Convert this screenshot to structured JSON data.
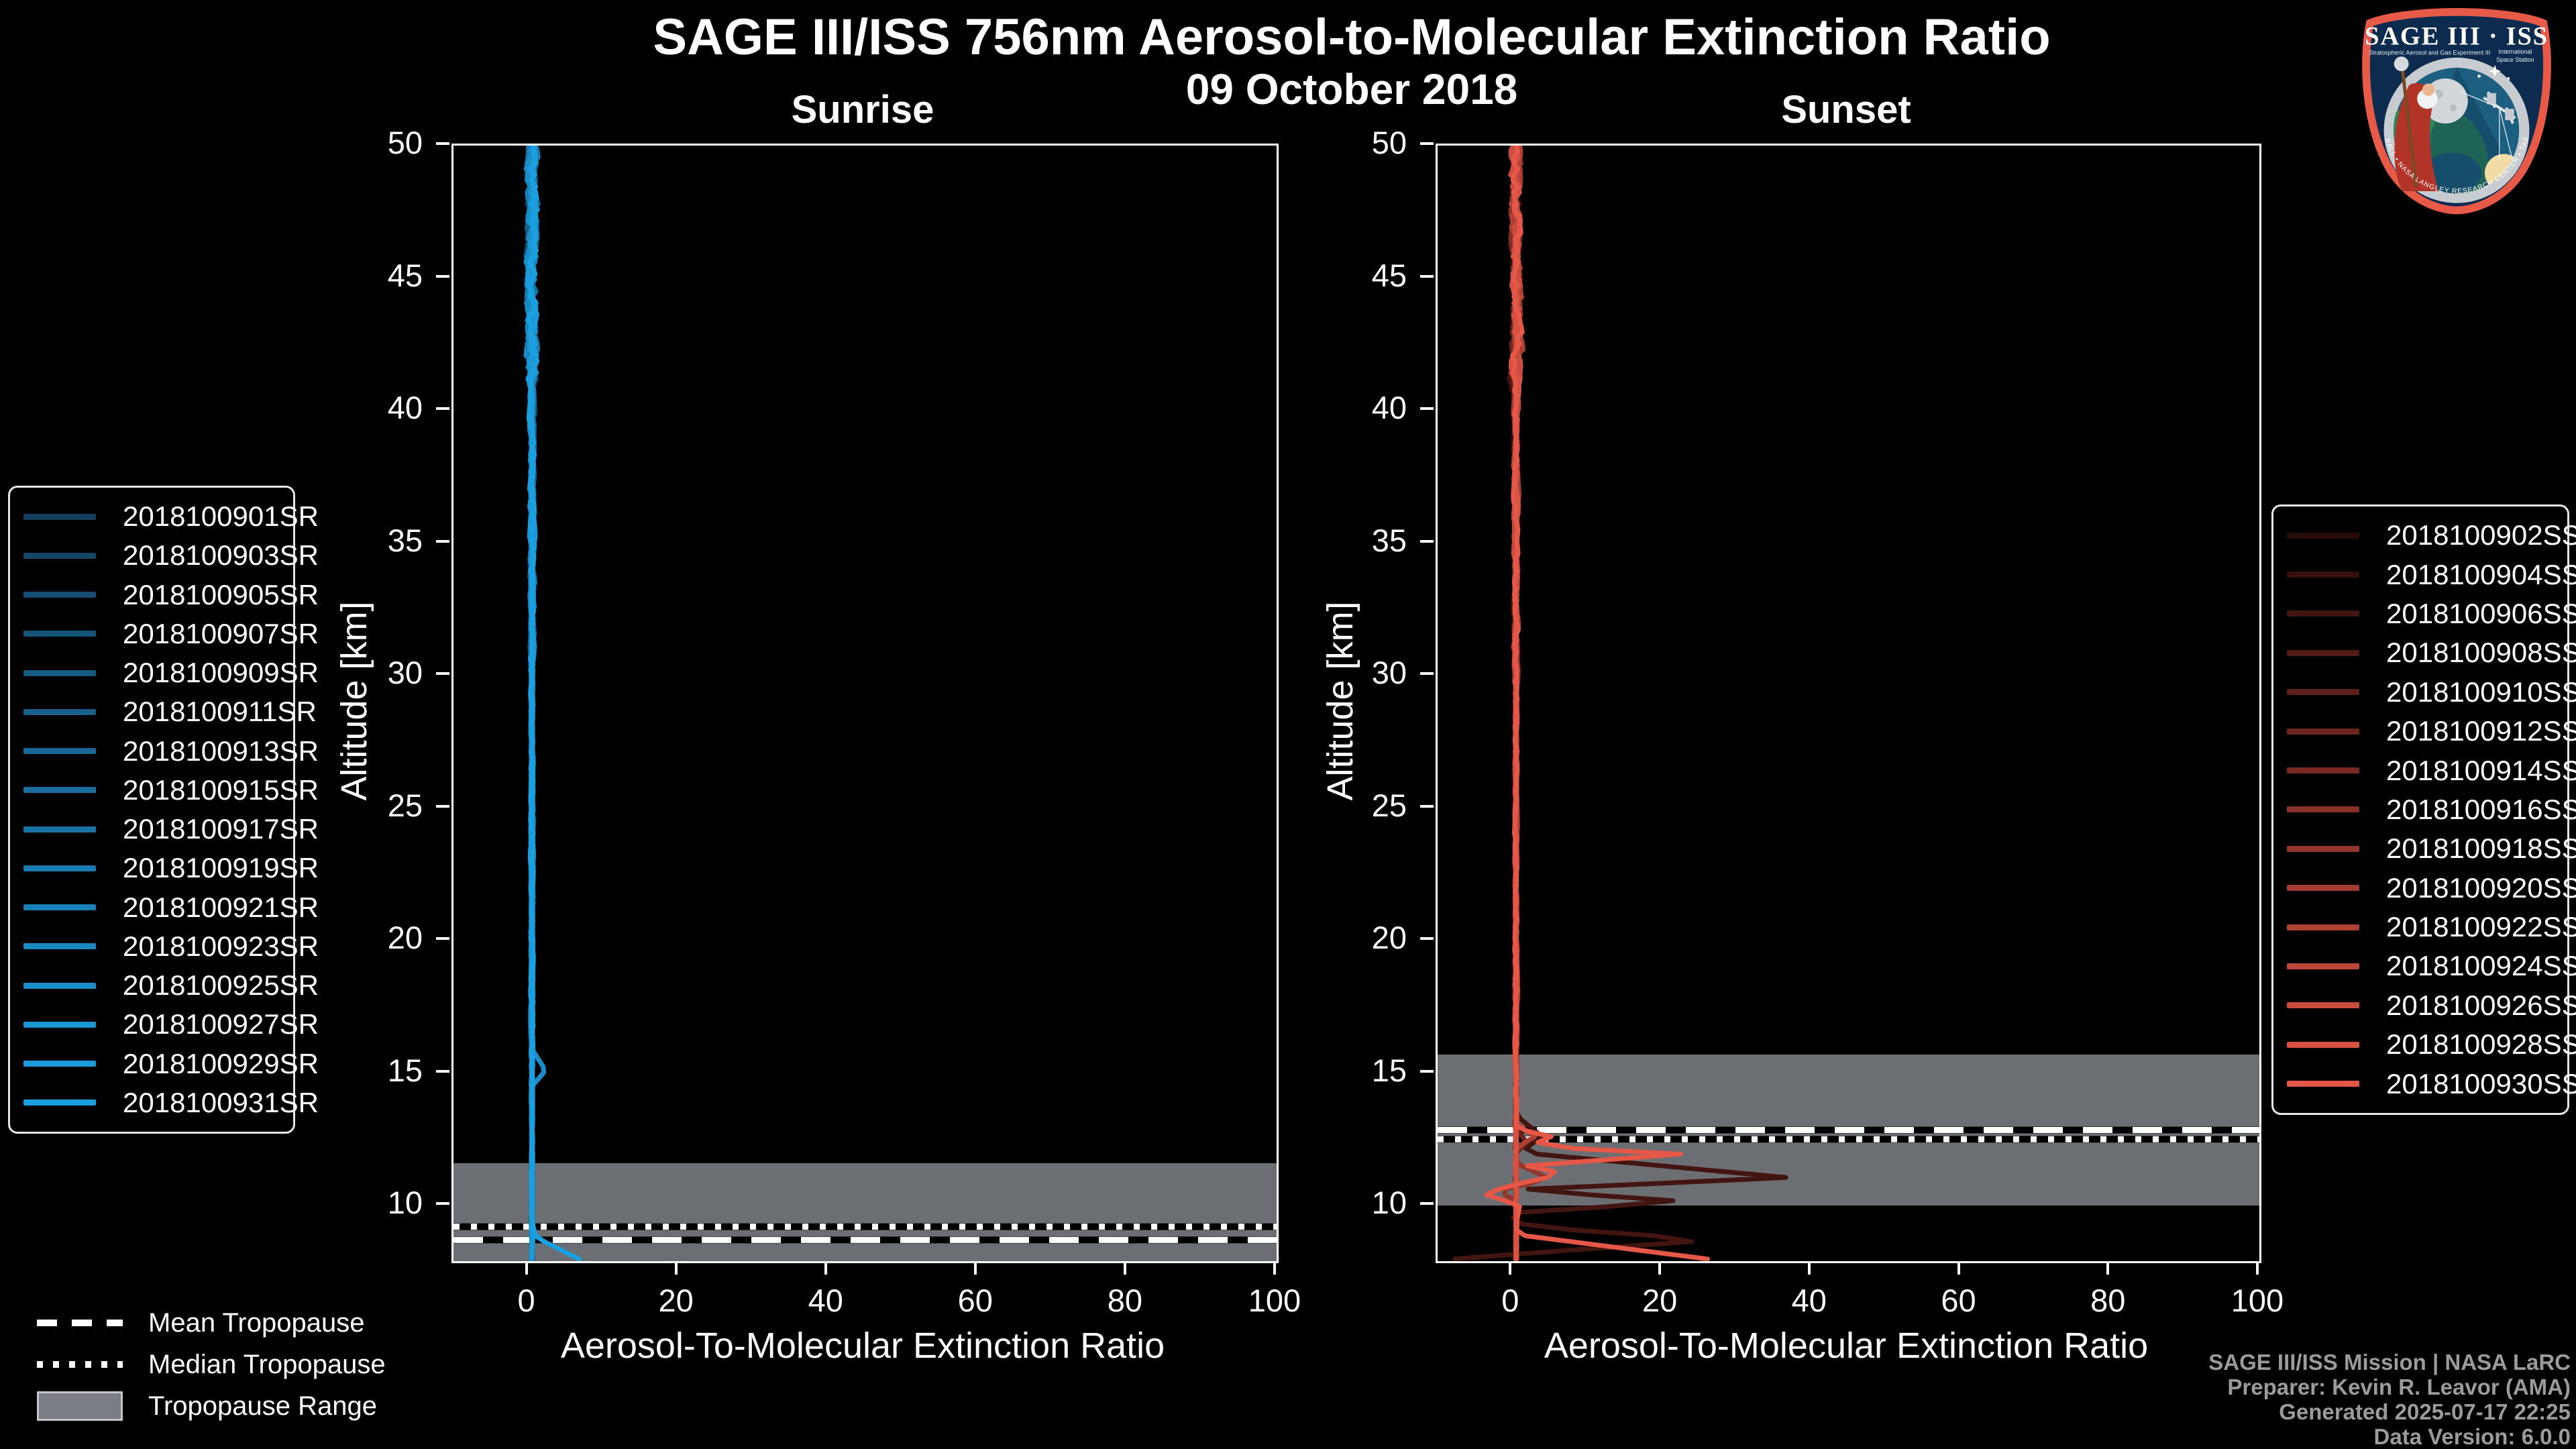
{
  "title": "SAGE III/ISS 756nm Aerosol-to-Molecular Extinction Ratio",
  "subtitle_date": "09 October 2018",
  "colors": {
    "background": "#000000",
    "axis": "#ffffff",
    "tropopause_band": "#6b6f74",
    "tropopause_band_legend": "#7a7e84",
    "credits_text": "#9b9b9b",
    "sunrise_accent": "#1aa0e0",
    "sunset_accent": "#e55746"
  },
  "tropopause_legend": [
    {
      "style": "dashed",
      "label": "Mean Tropopause"
    },
    {
      "style": "dotted",
      "label": "Median Tropopause"
    },
    {
      "style": "band",
      "label": "Tropopause Range"
    }
  ],
  "credits": [
    "SAGE III/ISS Mission | NASA LaRC",
    "Preparer: Kevin R. Leavor (AMA)",
    "Generated 2025-07-17 22:25",
    "Data Version: 6.0.0"
  ],
  "logo": {
    "title": "SAGE III · ISS",
    "program_left": "Stratospheric Aerosol and Gas Experiment III",
    "program_right_line1": "International",
    "program_right_line2": "Space Station",
    "ring_text": "BALL • NASA LANGLEY RESEARCH CENTER • TAS-I • ESA"
  },
  "chart_data": {
    "type": "line",
    "xlabel": "Aerosol-To-Molecular Extinction Ratio",
    "ylabel": "Altitude [km]",
    "xlim": [
      -10,
      100
    ],
    "ylim": [
      7.9,
      50
    ],
    "xticks": [
      0,
      20,
      40,
      60,
      80,
      100
    ],
    "yticks": [
      10,
      15,
      20,
      25,
      30,
      35,
      40,
      45,
      50
    ],
    "grid": false,
    "legend_position": "outside",
    "panels": [
      {
        "title": "Sunrise",
        "tropopause": {
          "band": [
            7.9,
            11.6
          ],
          "mean": 8.7,
          "median": 9.2
        },
        "series": [
          {
            "label": "2018100901SR",
            "color": "#14405e",
            "seed": 11,
            "noise": 1
          },
          {
            "label": "2018100903SR",
            "color": "#154767",
            "seed": 12,
            "noise": 1
          },
          {
            "label": "2018100905SR",
            "color": "#164d70",
            "seed": 13,
            "noise": 1
          },
          {
            "label": "2018100907SR",
            "color": "#165479",
            "seed": 14,
            "noise": 1
          },
          {
            "label": "2018100909SR",
            "color": "#175a82",
            "seed": 15,
            "noise": 1
          },
          {
            "label": "2018100911SR",
            "color": "#17618b",
            "seed": 16,
            "noise": 1
          },
          {
            "label": "2018100913SR",
            "color": "#186794",
            "seed": 17,
            "noise": 1
          },
          {
            "label": "2018100915SR",
            "color": "#186e9d",
            "seed": 18,
            "noise": 1
          },
          {
            "label": "2018100917SR",
            "color": "#1974a6",
            "seed": 19,
            "noise": 1
          },
          {
            "label": "2018100919SR",
            "color": "#197baf",
            "seed": 20,
            "noise": 1
          },
          {
            "label": "2018100921SR",
            "color": "#1a81b8",
            "seed": 21,
            "noise": 1
          },
          {
            "label": "2018100923SR",
            "color": "#1a88c1",
            "seed": 22,
            "noise": 1
          },
          {
            "label": "2018100925SR",
            "color": "#1b8eca",
            "seed": 23,
            "noise": 1,
            "anchors": [
              [
                15.9,
                0.5
              ],
              [
                15.1,
                2.3
              ],
              [
                14.5,
                0.5
              ]
            ]
          },
          {
            "label": "2018100927SR",
            "color": "#1b95d3",
            "seed": 24,
            "noise": 1
          },
          {
            "label": "2018100929SR",
            "color": "#1c9bdc",
            "seed": 25,
            "noise": 1
          },
          {
            "label": "2018100931SR",
            "color": "#1aa0e0",
            "seed": 26,
            "noise": 1,
            "anchors": [
              [
                9.4,
                0.5
              ],
              [
                8.8,
                1.0
              ],
              [
                7.95,
                7.0
              ]
            ]
          }
        ]
      },
      {
        "title": "Sunset",
        "tropopause": {
          "band": [
            10.0,
            15.7
          ],
          "mean": 12.85,
          "median": 12.5
        },
        "series": [
          {
            "label": "2018100902SS",
            "color": "#280a08",
            "seed": 31,
            "noise": 1
          },
          {
            "label": "2018100904SS",
            "color": "#35100c",
            "seed": 32,
            "noise": 1
          },
          {
            "label": "2018100906SS",
            "color": "#431511",
            "seed": 33,
            "noise": 1,
            "anchors": [
              [
                13.4,
                0.5
              ],
              [
                12.6,
                4
              ],
              [
                12.0,
                1
              ],
              [
                11.05,
                37
              ],
              [
                10.6,
                0.5
              ],
              [
                10.15,
                23
              ],
              [
                9.7,
                -1
              ],
              [
                9.2,
                2
              ],
              [
                8.7,
                27
              ],
              [
                8.2,
                2
              ],
              [
                7.95,
                -9
              ]
            ]
          },
          {
            "label": "2018100908SS",
            "color": "#501a15",
            "seed": 34,
            "noise": 1
          },
          {
            "label": "2018100910SS",
            "color": "#5e201a",
            "seed": 35,
            "noise": 1
          },
          {
            "label": "2018100912SS",
            "color": "#6c261e",
            "seed": 36,
            "noise": 1,
            "anchors": [
              [
                12.9,
                0.4
              ],
              [
                12.4,
                2
              ],
              [
                12.0,
                0.5
              ]
            ]
          },
          {
            "label": "2018100914SS",
            "color": "#792b23",
            "seed": 37,
            "noise": 1
          },
          {
            "label": "2018100916SS",
            "color": "#873127",
            "seed": 38,
            "noise": 1
          },
          {
            "label": "2018100918SS",
            "color": "#94362b",
            "seed": 39,
            "noise": 1,
            "anchors": [
              [
                11.6,
                0.5
              ],
              [
                11.0,
                5
              ],
              [
                10.55,
                -2
              ],
              [
                10.1,
                1
              ]
            ]
          },
          {
            "label": "2018100920SS",
            "color": "#a23c30",
            "seed": 40,
            "noise": 1
          },
          {
            "label": "2018100922SS",
            "color": "#af4134",
            "seed": 41,
            "noise": 1,
            "anchors": [
              [
                13.1,
                0.5
              ],
              [
                12.6,
                3
              ],
              [
                12.2,
                0.6
              ]
            ]
          },
          {
            "label": "2018100924SS",
            "color": "#bd4739",
            "seed": 42,
            "noise": 1
          },
          {
            "label": "2018100926SS",
            "color": "#ca4c3d",
            "seed": 43,
            "noise": 1
          },
          {
            "label": "2018100928SS",
            "color": "#d85242",
            "seed": 44,
            "noise": 1
          },
          {
            "label": "2018100930SS",
            "color": "#e55746",
            "seed": 45,
            "noise": 1,
            "anchors": [
              [
                12.9,
                0.5
              ],
              [
                12.55,
                6
              ],
              [
                12.25,
                1.5
              ],
              [
                11.95,
                23
              ],
              [
                11.5,
                2
              ],
              [
                11.2,
                7
              ],
              [
                10.8,
                0.5
              ],
              [
                10.45,
                -4
              ],
              [
                10.0,
                1
              ],
              [
                9.3,
                0.5
              ],
              [
                8.9,
                0.6
              ],
              [
                7.95,
                27
              ]
            ]
          }
        ]
      }
    ]
  }
}
